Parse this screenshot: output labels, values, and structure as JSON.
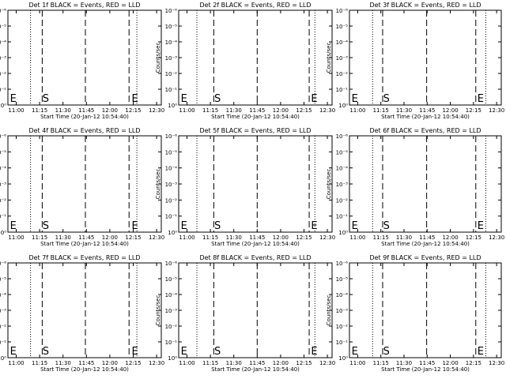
{
  "chart_data": [
    {
      "type": "line",
      "title": "Det 1f BLACK = Events, RED = LLD",
      "xlabel": "Start Time (20-Jan-12 10:54:40)",
      "ylabel": "Counts/sec",
      "x_ticks": [
        "11:00",
        "11:15",
        "11:30",
        "11:45",
        "12:00",
        "12:15",
        "12:30"
      ],
      "y_ticks": [
        "10⁰",
        "10⁻¹",
        "10⁻²",
        "10⁻³",
        "10⁻⁴",
        "10⁻⁵",
        "10⁻⁶"
      ],
      "xlim": [
        "10:54:40",
        "12:33:00"
      ],
      "ylim": [
        1,
        1e-06
      ],
      "y_scale": "log",
      "dotted_lines": [
        "11:09:10",
        "12:17:20"
      ],
      "dashed_lines": [
        "11:16:40",
        "11:44:20",
        "12:12:20"
      ],
      "markers": [
        {
          "label": "E",
          "x": "10:55:30"
        },
        {
          "label": "S",
          "x": "11:16:20"
        },
        {
          "label": "E",
          "x": "12:13:30"
        }
      ],
      "series": []
    },
    {
      "type": "line",
      "title": "Det 2f BLACK = Events, RED = LLD",
      "xlabel": "Start Time (20-Jan-12 10:54:40)",
      "ylabel": "Counts/sec",
      "x_ticks": [
        "11:00",
        "11:15",
        "11:30",
        "11:45",
        "12:00",
        "12:15",
        "12:30"
      ],
      "y_ticks": [
        "10⁰",
        "10⁻¹",
        "10⁻²",
        "10⁻³",
        "10⁻⁴",
        "10⁻⁵",
        "10⁻⁶"
      ],
      "xlim": [
        "10:54:40",
        "12:33:00"
      ],
      "ylim": [
        1,
        1e-06
      ],
      "y_scale": "log",
      "dotted_lines": [
        "11:06:20",
        "12:22:00"
      ],
      "dashed_lines": [
        "11:17:10",
        "11:45:00",
        "12:18:20"
      ],
      "markers": [
        {
          "label": "E",
          "x": "10:55:30"
        },
        {
          "label": "S",
          "x": "11:17:00"
        },
        {
          "label": "E",
          "x": "12:19:00"
        }
      ],
      "series": []
    },
    {
      "type": "line",
      "title": "Det 3f BLACK = Events, RED = LLD",
      "xlabel": "Start Time (20-Jan-12 10:54:40)",
      "ylabel": "Counts/sec",
      "x_ticks": [
        "11:00",
        "11:15",
        "11:30",
        "11:45",
        "12:00",
        "12:15",
        "12:30"
      ],
      "y_ticks": [
        "10⁰",
        "10⁻¹",
        "10⁻²",
        "10⁻³",
        "10⁻⁴",
        "10⁻⁵",
        "10⁻⁶"
      ],
      "xlim": [
        "10:54:40",
        "12:33:00"
      ],
      "ylim": [
        1,
        1e-06
      ],
      "y_scale": "log",
      "dotted_lines": [
        "11:09:40",
        "12:23:00"
      ],
      "dashed_lines": [
        "11:16:10",
        "11:44:40",
        "12:16:30"
      ],
      "markers": [
        {
          "label": "E",
          "x": "10:55:30"
        },
        {
          "label": "S",
          "x": "11:16:00"
        },
        {
          "label": "E",
          "x": "12:17:00"
        }
      ],
      "series": []
    },
    {
      "type": "line",
      "title": "Det 4f BLACK = Events, RED = LLD",
      "xlabel": "Start Time (20-Jan-12 10:54:40)",
      "ylabel": "Counts/sec",
      "x_ticks": [
        "11:00",
        "11:15",
        "11:30",
        "11:45",
        "12:00",
        "12:15",
        "12:30"
      ],
      "y_ticks": [
        "10⁰",
        "10⁻¹",
        "10⁻²",
        "10⁻³",
        "10⁻⁴",
        "10⁻⁵",
        "10⁻⁶"
      ],
      "xlim": [
        "10:54:40",
        "12:33:00"
      ],
      "ylim": [
        1,
        1e-06
      ],
      "y_scale": "log",
      "dotted_lines": [
        "11:09:10",
        "12:17:20"
      ],
      "dashed_lines": [
        "11:16:40",
        "11:44:20",
        "12:12:20"
      ],
      "markers": [
        {
          "label": "E",
          "x": "10:55:30"
        },
        {
          "label": "S",
          "x": "11:16:20"
        },
        {
          "label": "E",
          "x": "12:13:30"
        }
      ],
      "series": []
    },
    {
      "type": "line",
      "title": "Det 5f BLACK = Events, RED = LLD",
      "xlabel": "Start Time (20-Jan-12 10:54:40)",
      "ylabel": "Counts/sec",
      "x_ticks": [
        "11:00",
        "11:15",
        "11:30",
        "11:45",
        "12:00",
        "12:15",
        "12:30"
      ],
      "y_ticks": [
        "10⁰",
        "10⁻¹",
        "10⁻²",
        "10⁻³",
        "10⁻⁴",
        "10⁻⁵",
        "10⁻⁶"
      ],
      "xlim": [
        "10:54:40",
        "12:33:00"
      ],
      "ylim": [
        1,
        1e-06
      ],
      "y_scale": "log",
      "dotted_lines": [
        "11:06:20",
        "12:22:00"
      ],
      "dashed_lines": [
        "11:17:10",
        "11:45:00",
        "12:18:20"
      ],
      "markers": [
        {
          "label": "E",
          "x": "10:55:30"
        },
        {
          "label": "S",
          "x": "11:17:00"
        },
        {
          "label": "E",
          "x": "12:19:00"
        }
      ],
      "series": []
    },
    {
      "type": "line",
      "title": "Det 6f BLACK = Events, RED = LLD",
      "xlabel": "Start Time (20-Jan-12 10:54:40)",
      "ylabel": "Counts/sec",
      "x_ticks": [
        "11:00",
        "11:15",
        "11:30",
        "11:45",
        "12:00",
        "12:15",
        "12:30"
      ],
      "y_ticks": [
        "10⁰",
        "10⁻¹",
        "10⁻²",
        "10⁻³",
        "10⁻⁴",
        "10⁻⁵",
        "10⁻⁶"
      ],
      "xlim": [
        "10:54:40",
        "12:33:00"
      ],
      "ylim": [
        1,
        1e-06
      ],
      "y_scale": "log",
      "dotted_lines": [
        "11:09:40",
        "12:23:00"
      ],
      "dashed_lines": [
        "11:16:10",
        "11:44:40",
        "12:16:30"
      ],
      "markers": [
        {
          "label": "E",
          "x": "10:55:30"
        },
        {
          "label": "S",
          "x": "11:16:00"
        },
        {
          "label": "E",
          "x": "12:17:00"
        }
      ],
      "series": []
    },
    {
      "type": "line",
      "title": "Det 7f BLACK = Events, RED = LLD",
      "xlabel": "Start Time (20-Jan-12 10:54:40)",
      "ylabel": "Counts/sec",
      "x_ticks": [
        "11:00",
        "11:15",
        "11:30",
        "11:45",
        "12:00",
        "12:15",
        "12:30"
      ],
      "y_ticks": [
        "10⁰",
        "10⁻¹",
        "10⁻²",
        "10⁻³",
        "10⁻⁴",
        "10⁻⁵",
        "10⁻⁶"
      ],
      "xlim": [
        "10:54:40",
        "12:33:00"
      ],
      "ylim": [
        1,
        1e-06
      ],
      "y_scale": "log",
      "dotted_lines": [
        "11:09:10",
        "12:17:20"
      ],
      "dashed_lines": [
        "11:16:40",
        "11:44:20",
        "12:12:20"
      ],
      "markers": [
        {
          "label": "E",
          "x": "10:55:30"
        },
        {
          "label": "S",
          "x": "11:16:20"
        },
        {
          "label": "E",
          "x": "12:13:30"
        }
      ],
      "series": []
    },
    {
      "type": "line",
      "title": "Det 8f BLACK = Events, RED = LLD",
      "xlabel": "Start Time (20-Jan-12 10:54:40)",
      "ylabel": "Counts/sec",
      "x_ticks": [
        "11:00",
        "11:15",
        "11:30",
        "11:45",
        "12:00",
        "12:15",
        "12:30"
      ],
      "y_ticks": [
        "10⁰",
        "10⁻¹",
        "10⁻²",
        "10⁻³",
        "10⁻⁴",
        "10⁻⁵",
        "10⁻⁶"
      ],
      "xlim": [
        "10:54:40",
        "12:33:00"
      ],
      "ylim": [
        1,
        1e-06
      ],
      "y_scale": "log",
      "dotted_lines": [
        "11:06:20",
        "12:22:00"
      ],
      "dashed_lines": [
        "11:17:10",
        "11:45:00",
        "12:18:20"
      ],
      "markers": [
        {
          "label": "E",
          "x": "10:55:30"
        },
        {
          "label": "S",
          "x": "11:17:00"
        },
        {
          "label": "E",
          "x": "12:19:00"
        }
      ],
      "series": []
    },
    {
      "type": "line",
      "title": "Det 9f BLACK = Events, RED = LLD",
      "xlabel": "Start Time (20-Jan-12 10:54:40)",
      "ylabel": "Counts/sec",
      "x_ticks": [
        "11:00",
        "11:15",
        "11:30",
        "11:45",
        "12:00",
        "12:15",
        "12:30"
      ],
      "y_ticks": [
        "10⁰",
        "10⁻¹",
        "10⁻²",
        "10⁻³",
        "10⁻⁴",
        "10⁻⁵",
        "10⁻⁶"
      ],
      "xlim": [
        "10:54:40",
        "12:33:00"
      ],
      "ylim": [
        1,
        1e-06
      ],
      "y_scale": "log",
      "dotted_lines": [
        "11:09:40",
        "12:23:00"
      ],
      "dashed_lines": [
        "11:16:10",
        "11:44:40",
        "12:16:30"
      ],
      "markers": [
        {
          "label": "E",
          "x": "10:55:30"
        },
        {
          "label": "S",
          "x": "11:16:00"
        },
        {
          "label": "E",
          "x": "12:17:00"
        }
      ],
      "series": []
    }
  ]
}
